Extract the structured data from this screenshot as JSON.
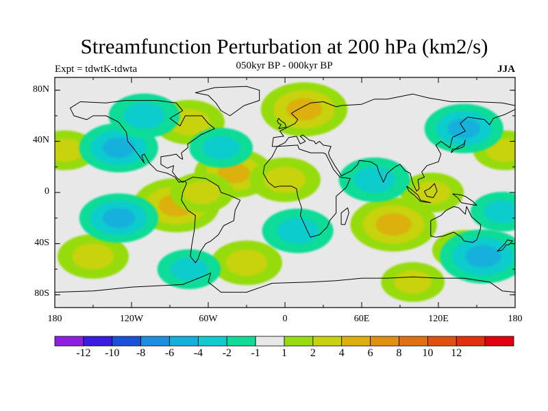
{
  "title": "Streamfunction Perturbation at 200 hPa (km2/s)",
  "subtitle": "050kyr BP - 000kyr BP",
  "experiment": "Expt = tdwtK-tdwta",
  "season": "JJA",
  "map": {
    "lon_range": [
      -180,
      180
    ],
    "lat_range": [
      -90,
      90
    ],
    "lat_ticks": [
      {
        "value": 80,
        "label": "80N"
      },
      {
        "value": 40,
        "label": "40N"
      },
      {
        "value": 0,
        "label": "0"
      },
      {
        "value": -40,
        "label": "40S"
      },
      {
        "value": -80,
        "label": "80S"
      }
    ],
    "lon_ticks": [
      {
        "value": -180,
        "label": "180"
      },
      {
        "value": -120,
        "label": "120W"
      },
      {
        "value": -60,
        "label": "60W"
      },
      {
        "value": 0,
        "label": "0"
      },
      {
        "value": 60,
        "label": "60E"
      },
      {
        "value": 120,
        "label": "120E"
      },
      {
        "value": 180,
        "label": "180"
      }
    ]
  },
  "colorbar": {
    "colors": [
      "#8b20e0",
      "#3a1ce0",
      "#1c50d8",
      "#1a8ee0",
      "#12b0dc",
      "#10cccc",
      "#10dc98",
      "#e8e8e8",
      "#96dc10",
      "#c8d210",
      "#dcb010",
      "#e09010",
      "#e07010",
      "#e05010",
      "#e03010",
      "#e00010"
    ],
    "labels": [
      "-12",
      "-10",
      "-8",
      "-6",
      "-4",
      "-2",
      "-1",
      "1",
      "2",
      "4",
      "6",
      "8",
      "10",
      "12"
    ]
  },
  "chart_data": {
    "type": "heatmap",
    "title": "Streamfunction Perturbation at 200 hPa (km2/s)",
    "subtitle": "050kyr BP - 000kyr BP",
    "units": "km2/s",
    "levels": [
      -12,
      -10,
      -8,
      -6,
      -4,
      -2,
      -1,
      1,
      2,
      4,
      6,
      8,
      10,
      12
    ],
    "features": [
      {
        "lon": 15,
        "lat": 65,
        "value": 5,
        "sign": "positive"
      },
      {
        "lon": -40,
        "lat": 15,
        "value": 4,
        "sign": "positive"
      },
      {
        "lon": 0,
        "lat": 10,
        "value": 3,
        "sign": "positive"
      },
      {
        "lon": -85,
        "lat": -10,
        "value": 5,
        "sign": "positive"
      },
      {
        "lon": -75,
        "lat": 55,
        "value": 3,
        "sign": "positive"
      },
      {
        "lon": -65,
        "lat": 0,
        "value": 2,
        "sign": "positive"
      },
      {
        "lon": 85,
        "lat": -25,
        "value": 5,
        "sign": "positive"
      },
      {
        "lon": -150,
        "lat": -50,
        "value": 3,
        "sign": "positive"
      },
      {
        "lon": -30,
        "lat": -55,
        "value": 3,
        "sign": "positive"
      },
      {
        "lon": 115,
        "lat": 0,
        "value": 2,
        "sign": "positive"
      },
      {
        "lon": 172,
        "lat": 33,
        "value": 2,
        "sign": "positive"
      },
      {
        "lon": -172,
        "lat": 33,
        "value": 2,
        "sign": "positive"
      },
      {
        "lon": 140,
        "lat": -45,
        "value": 2,
        "sign": "positive"
      },
      {
        "lon": 100,
        "lat": -70,
        "value": 2,
        "sign": "positive"
      },
      {
        "lon": -130,
        "lat": -20,
        "value": -4,
        "sign": "negative"
      },
      {
        "lon": -130,
        "lat": 35,
        "value": -4,
        "sign": "negative"
      },
      {
        "lon": 155,
        "lat": -50,
        "value": -5,
        "sign": "negative"
      },
      {
        "lon": -110,
        "lat": 60,
        "value": -3,
        "sign": "negative"
      },
      {
        "lon": 70,
        "lat": 10,
        "value": -3,
        "sign": "negative"
      },
      {
        "lon": 140,
        "lat": 50,
        "value": -4,
        "sign": "negative"
      },
      {
        "lon": 10,
        "lat": -30,
        "value": -3,
        "sign": "negative"
      },
      {
        "lon": -50,
        "lat": 35,
        "value": -2,
        "sign": "negative"
      },
      {
        "lon": -75,
        "lat": -60,
        "value": -2,
        "sign": "negative"
      },
      {
        "lon": 170,
        "lat": -15,
        "value": -2,
        "sign": "negative"
      }
    ]
  }
}
